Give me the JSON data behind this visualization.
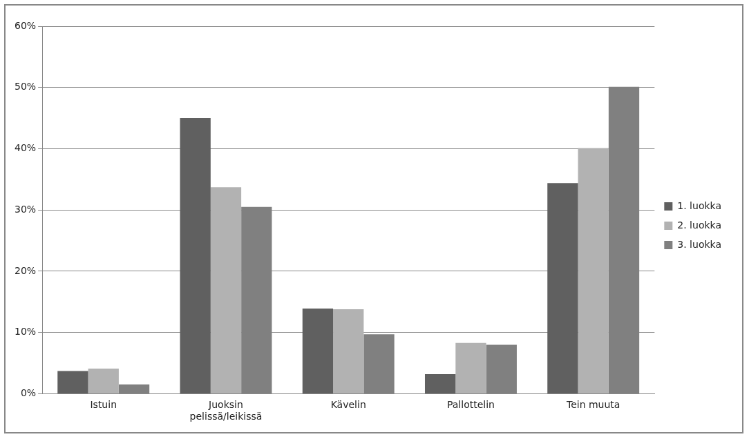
{
  "chart_data": {
    "type": "bar",
    "categories": [
      "Istuin",
      "Juoksin pelissä/leikissä",
      "Kävelin",
      "Pallottelin",
      "Tein muuta"
    ],
    "series": [
      {
        "name": "1. luokka",
        "color": "#606060",
        "values": [
          3.7,
          45,
          13.9,
          3.2,
          34.4
        ]
      },
      {
        "name": "2. luokka",
        "color": "#b2b2b2",
        "values": [
          4.1,
          33.7,
          13.8,
          8.3,
          40.1
        ]
      },
      {
        "name": "3. luokka",
        "color": "#808080",
        "values": [
          1.5,
          30.5,
          9.7,
          8.0,
          50.1
        ]
      }
    ],
    "ylim": [
      0,
      60
    ],
    "yticks": [
      {
        "value": 0,
        "label": "0%"
      },
      {
        "value": 10,
        "label": "10%"
      },
      {
        "value": 20,
        "label": "20%"
      },
      {
        "value": 30,
        "label": "30%"
      },
      {
        "value": 40,
        "label": "40%"
      },
      {
        "value": 50,
        "label": "50%"
      },
      {
        "value": 60,
        "label": "60%"
      }
    ],
    "grid": "y",
    "legend": "right"
  }
}
